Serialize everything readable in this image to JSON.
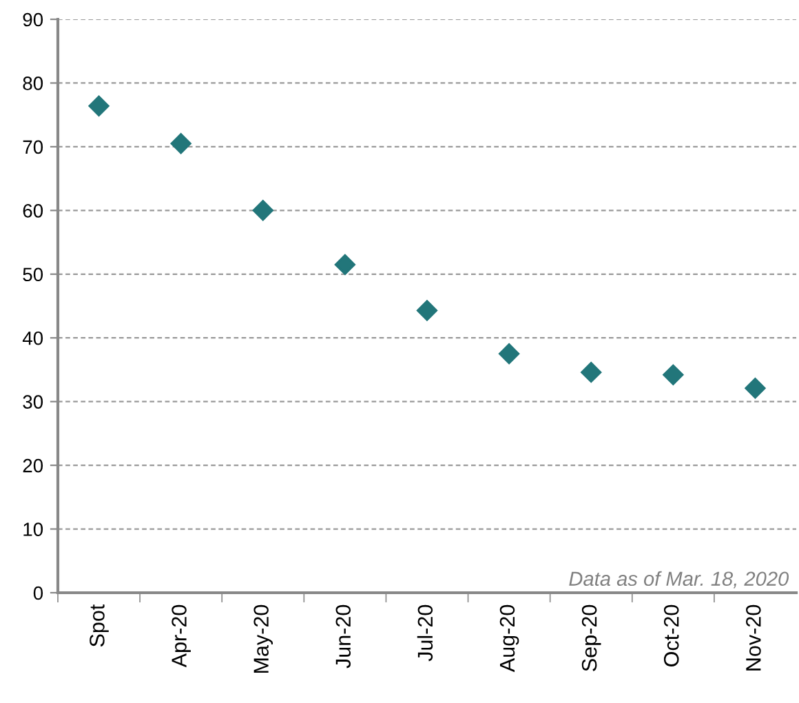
{
  "chart_data": {
    "type": "scatter",
    "categories": [
      "Spot",
      "Apr-20",
      "May-20",
      "Jun-20",
      "Jul-20",
      "Aug-20",
      "Sep-20",
      "Oct-20",
      "Nov-20"
    ],
    "series": [
      {
        "color": "#22767a",
        "values": [
          76.4,
          70.5,
          60,
          51.5,
          44.3,
          37.5,
          34.6,
          34.2,
          32.1
        ]
      }
    ],
    "marker": "diamond",
    "ylim": [
      0,
      90
    ],
    "yticks": [
      0,
      10,
      20,
      30,
      40,
      50,
      60,
      70,
      80,
      90
    ],
    "grid": "y",
    "annotations": [
      "Data as of Mar. 18, 2020"
    ]
  }
}
